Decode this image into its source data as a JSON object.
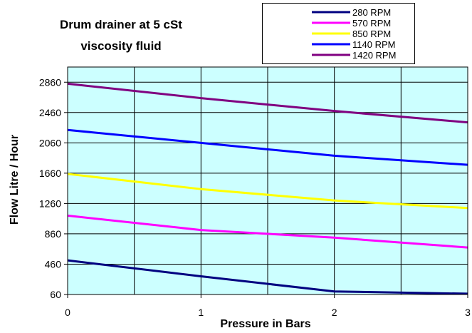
{
  "chart_data": {
    "type": "line",
    "title_lines": [
      "Drum drainer at 5 cSt",
      "viscosity fluid"
    ],
    "xlabel": "Pressure in Bars",
    "ylabel": "Flow Litre / Hour",
    "x": [
      0,
      1,
      2,
      3
    ],
    "x_ticks": [
      "0",
      "1",
      "2",
      "3"
    ],
    "y_ticks": [
      "60",
      "460",
      "860",
      "1260",
      "1660",
      "2060",
      "2460",
      "2860"
    ],
    "xlim": [
      0,
      3
    ],
    "ylim": [
      60,
      3060
    ],
    "grid": true,
    "plot_background": "#ccffff",
    "legend_position": "top-right",
    "series": [
      {
        "name": "280 RPM",
        "color": "#000080",
        "values": [
          510,
          300,
          100,
          70
        ]
      },
      {
        "name": "570 RPM",
        "color": "#ff00ff",
        "values": [
          1100,
          910,
          810,
          680
        ]
      },
      {
        "name": "850 RPM",
        "color": "#ffff00",
        "values": [
          1650,
          1450,
          1300,
          1200
        ]
      },
      {
        "name": "1140 RPM",
        "color": "#0000ff",
        "values": [
          2230,
          2060,
          1890,
          1770
        ]
      },
      {
        "name": "1420 RPM",
        "color": "#800080",
        "values": [
          2840,
          2650,
          2480,
          2330
        ]
      }
    ]
  }
}
